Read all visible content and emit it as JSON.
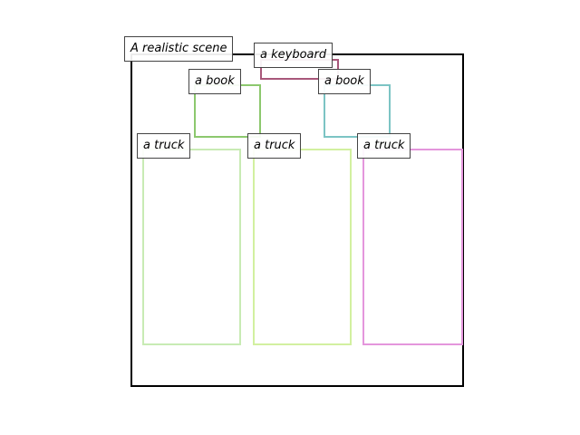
{
  "caption": "A realistic scene",
  "objects": [
    {
      "id": "keyboard",
      "label": "a keyboard",
      "color": "#a8577a"
    },
    {
      "id": "book-1",
      "label": "a book",
      "color": "#8cc86e"
    },
    {
      "id": "book-2",
      "label": "a book",
      "color": "#7cc4c4"
    },
    {
      "id": "truck-1",
      "label": "a truck",
      "color": "#c8ebb4"
    },
    {
      "id": "truck-2",
      "label": "a truck",
      "color": "#d2f0a0"
    },
    {
      "id": "truck-3",
      "label": "a truck",
      "color": "#e496dc"
    }
  ]
}
